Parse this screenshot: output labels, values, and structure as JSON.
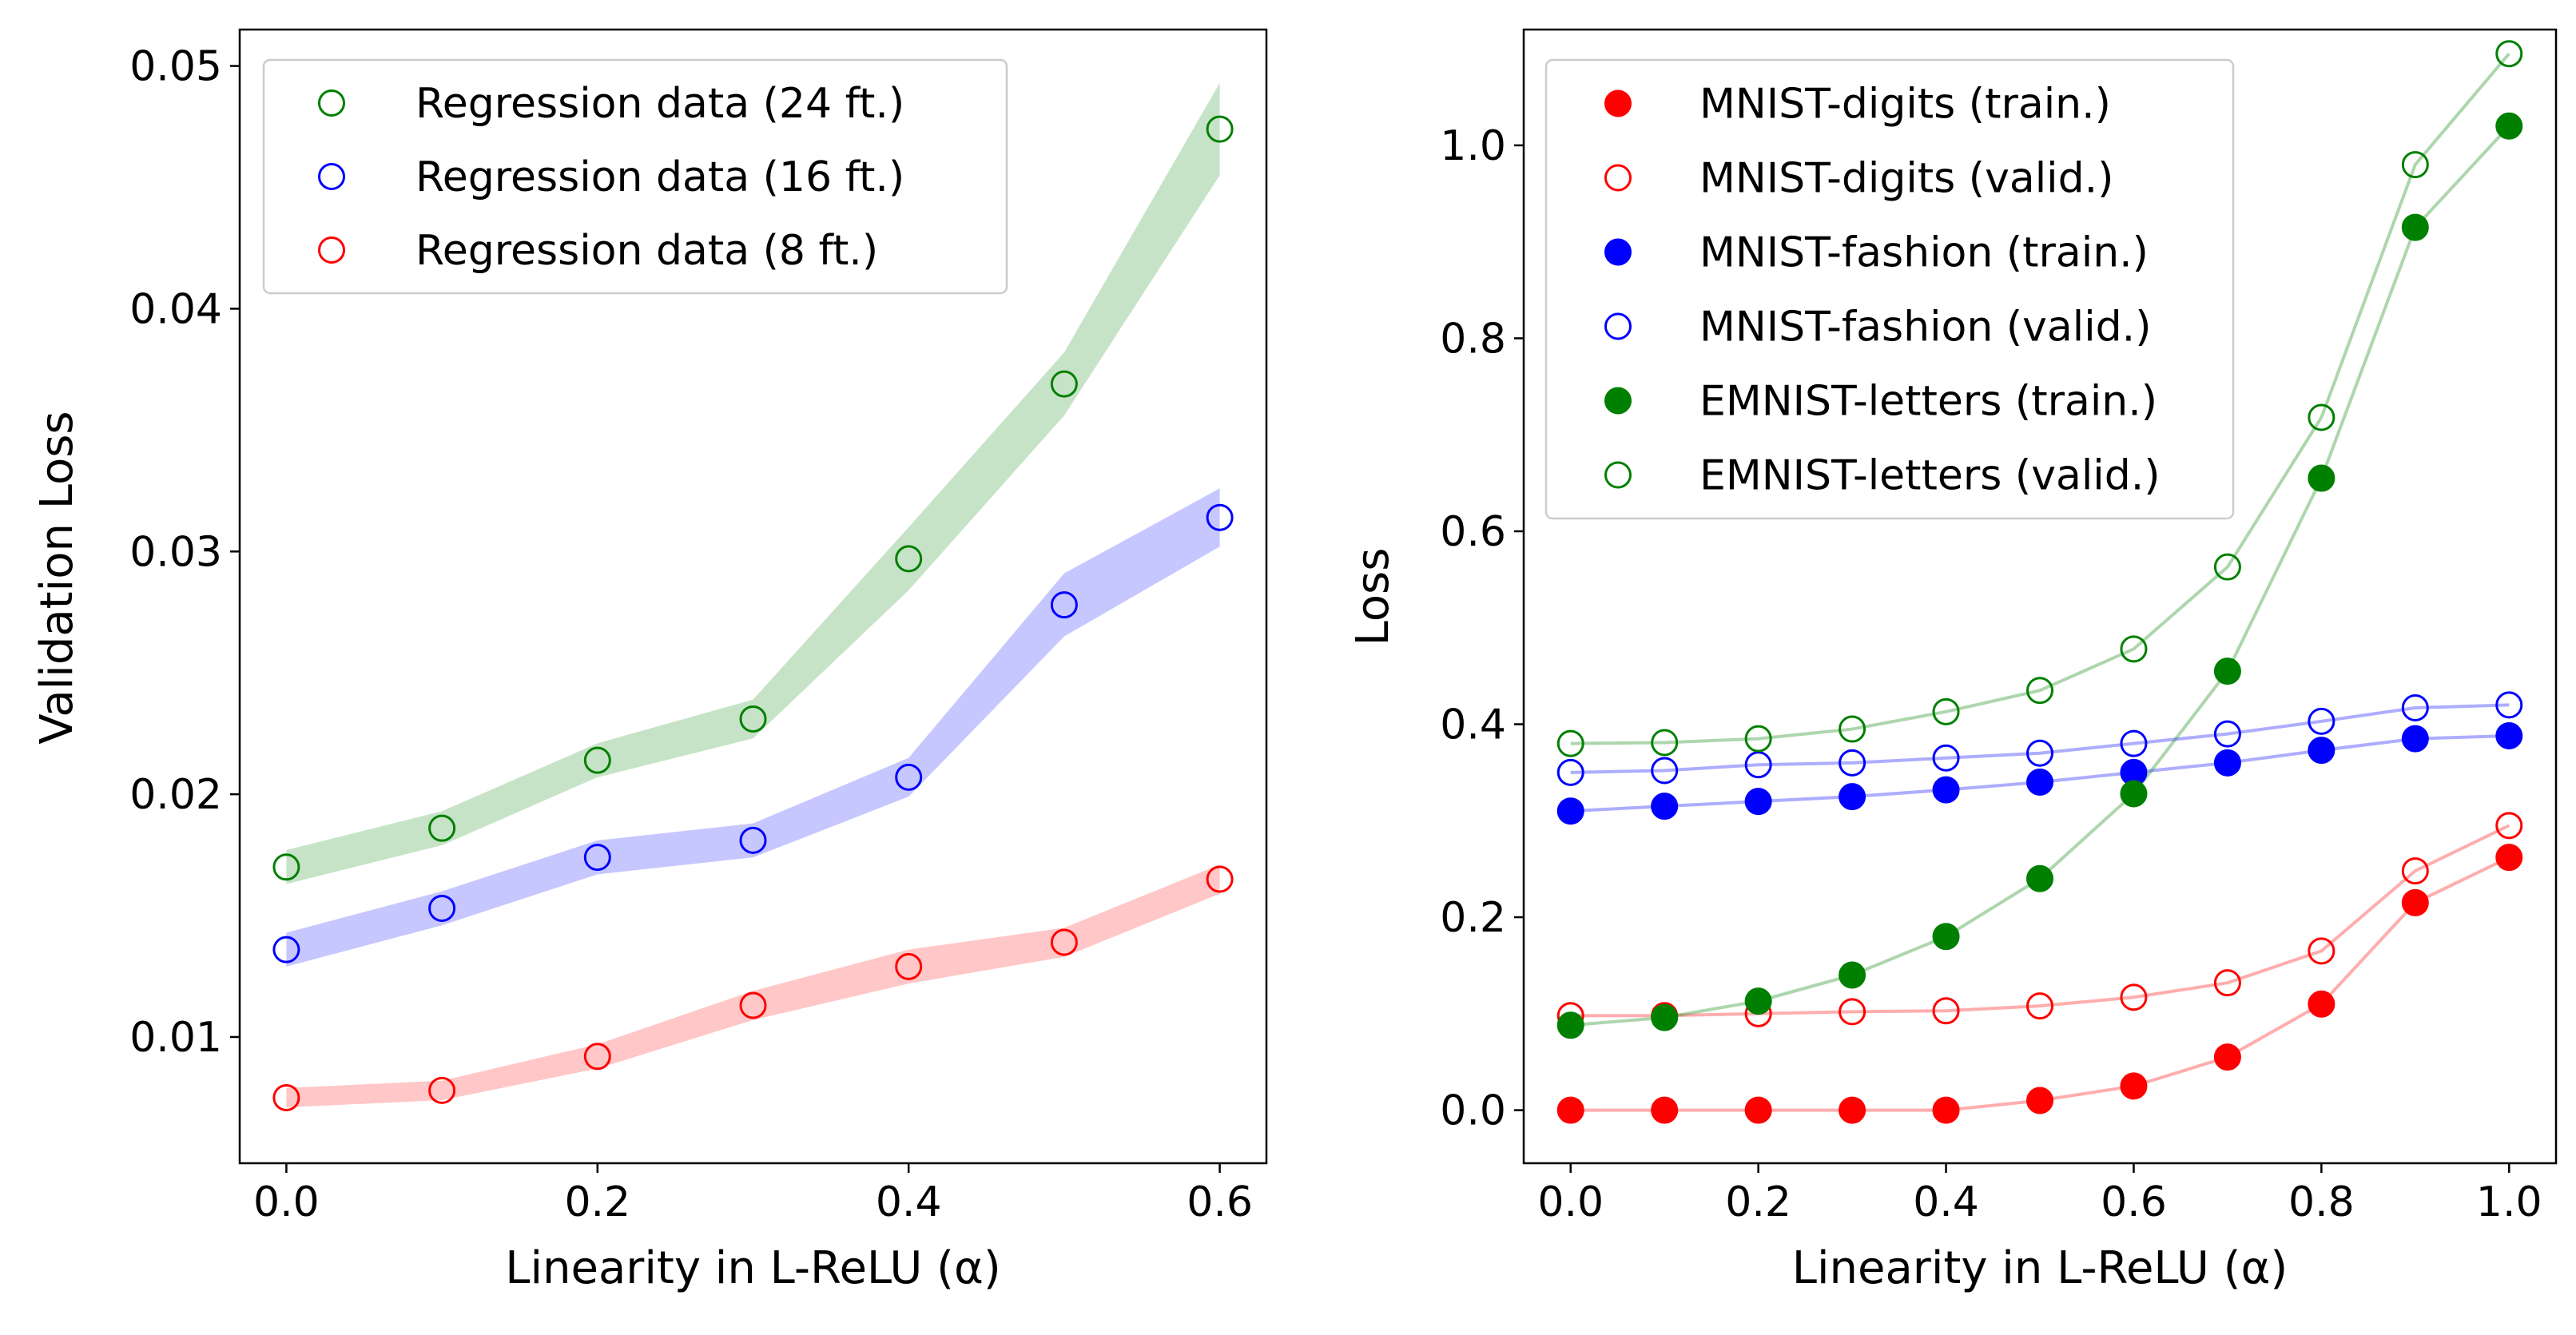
{
  "chart_data": [
    {
      "type": "scatter",
      "title": "",
      "xlabel": "Linearity in L-ReLU (α)",
      "ylabel": "Validation Loss",
      "xlim": [
        -0.03,
        0.63
      ],
      "ylim": [
        0.0048,
        0.0515
      ],
      "xticks": [
        0.0,
        0.2,
        0.4,
        0.6
      ],
      "xtick_labels": [
        "0.0",
        "0.2",
        "0.4",
        "0.6"
      ],
      "yticks": [
        0.01,
        0.02,
        0.03,
        0.04,
        0.05
      ],
      "ytick_labels": [
        "0.01",
        "0.02",
        "0.03",
        "0.04",
        "0.05"
      ],
      "grid": false,
      "legend_position": "top-left",
      "x": [
        0.0,
        0.1,
        0.2,
        0.3,
        0.4,
        0.5,
        0.6
      ],
      "series": [
        {
          "name": "Regression data (24 ft.)",
          "color": "#008000",
          "marker": "open-circle",
          "values": [
            0.017,
            0.0186,
            0.0214,
            0.0231,
            0.0297,
            0.0369,
            0.0474
          ],
          "band_low": [
            0.0163,
            0.0179,
            0.0207,
            0.0223,
            0.0284,
            0.0356,
            0.0455
          ],
          "band_high": [
            0.0177,
            0.0193,
            0.0221,
            0.0239,
            0.031,
            0.0382,
            0.0493
          ]
        },
        {
          "name": "Regression data (16 ft.)",
          "color": "#0000ff",
          "marker": "open-circle",
          "values": [
            0.0136,
            0.0153,
            0.0174,
            0.0181,
            0.0207,
            0.0278,
            0.0314
          ],
          "band_low": [
            0.0129,
            0.0146,
            0.0167,
            0.0174,
            0.0199,
            0.0265,
            0.0302
          ],
          "band_high": [
            0.0143,
            0.016,
            0.0181,
            0.0188,
            0.0215,
            0.0291,
            0.0326
          ]
        },
        {
          "name": "Regression data (8 ft.)",
          "color": "#ff0000",
          "marker": "open-circle",
          "values": [
            0.0075,
            0.0078,
            0.0092,
            0.0113,
            0.0129,
            0.0139,
            0.0165
          ],
          "band_low": [
            0.0071,
            0.0074,
            0.0087,
            0.0107,
            0.0122,
            0.0133,
            0.0159
          ],
          "band_high": [
            0.0079,
            0.0082,
            0.0097,
            0.0119,
            0.0136,
            0.0145,
            0.0171
          ]
        }
      ]
    },
    {
      "type": "line",
      "title": "",
      "xlabel": "Linearity in L-ReLU (α)",
      "ylabel": "Loss",
      "xlim": [
        -0.05,
        1.05
      ],
      "ylim": [
        -0.055,
        1.12
      ],
      "xticks": [
        0.0,
        0.2,
        0.4,
        0.6,
        0.8,
        1.0
      ],
      "xtick_labels": [
        "0.0",
        "0.2",
        "0.4",
        "0.6",
        "0.8",
        "1.0"
      ],
      "yticks": [
        0.0,
        0.2,
        0.4,
        0.6,
        0.8,
        1.0
      ],
      "ytick_labels": [
        "0.0",
        "0.2",
        "0.4",
        "0.6",
        "0.8",
        "1.0"
      ],
      "grid": false,
      "legend_position": "top-left",
      "x": [
        0.0,
        0.1,
        0.2,
        0.3,
        0.4,
        0.5,
        0.6,
        0.7,
        0.8,
        0.9,
        1.0
      ],
      "series": [
        {
          "name": "MNIST-digits (train.)",
          "color": "#ff0000",
          "marker": "filled-circle",
          "values": [
            0.0,
            0.0,
            0.0,
            0.0,
            0.0,
            0.01,
            0.025,
            0.055,
            0.11,
            0.215,
            0.262
          ]
        },
        {
          "name": "MNIST-digits (valid.)",
          "color": "#ff0000",
          "marker": "open-circle",
          "values": [
            0.098,
            0.098,
            0.1,
            0.102,
            0.103,
            0.108,
            0.117,
            0.132,
            0.165,
            0.248,
            0.295
          ]
        },
        {
          "name": "MNIST-fashion (train.)",
          "color": "#0000ff",
          "marker": "filled-circle",
          "values": [
            0.31,
            0.315,
            0.32,
            0.325,
            0.332,
            0.34,
            0.35,
            0.36,
            0.373,
            0.385,
            0.388
          ]
        },
        {
          "name": "MNIST-fashion (valid.)",
          "color": "#0000ff",
          "marker": "open-circle",
          "values": [
            0.35,
            0.352,
            0.358,
            0.36,
            0.365,
            0.37,
            0.38,
            0.39,
            0.403,
            0.417,
            0.42
          ]
        },
        {
          "name": "EMNIST-letters (train.)",
          "color": "#008000",
          "marker": "filled-circle",
          "values": [
            0.088,
            0.096,
            0.113,
            0.14,
            0.18,
            0.24,
            0.328,
            0.455,
            0.655,
            0.915,
            1.02
          ]
        },
        {
          "name": "EMNIST-letters (valid.)",
          "color": "#008000",
          "marker": "open-circle",
          "values": [
            0.38,
            0.381,
            0.385,
            0.395,
            0.413,
            0.435,
            0.478,
            0.563,
            0.718,
            0.98,
            1.095
          ]
        }
      ]
    }
  ]
}
